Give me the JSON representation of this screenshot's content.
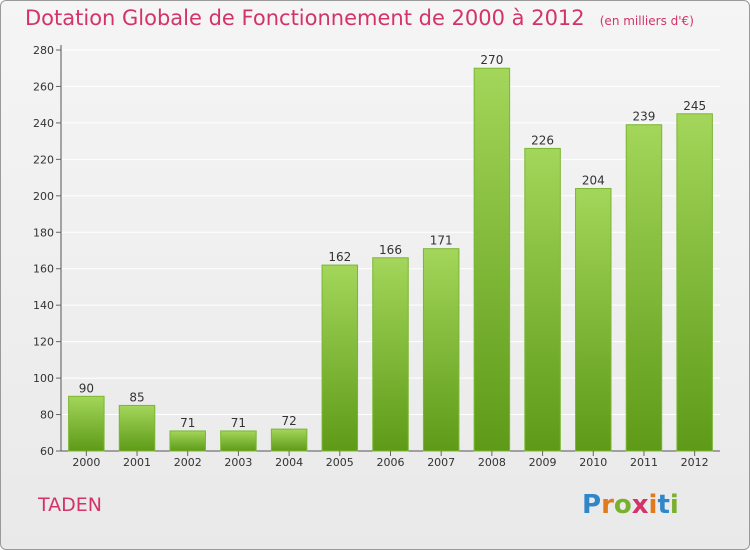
{
  "title": "Dotation Globale de Fonctionnement de 2000 à 2012",
  "subtitle": "(en milliers d'€)",
  "commune": "TADEN",
  "brand": "Proxiti",
  "colors": {
    "title": "#d4336a",
    "bar_light": "#a3d65a",
    "bar_dark": "#5e9a18",
    "grid": "#ffffff"
  },
  "chart_data": {
    "type": "bar",
    "categories": [
      "2000",
      "2001",
      "2002",
      "2003",
      "2004",
      "2005",
      "2006",
      "2007",
      "2008",
      "2009",
      "2010",
      "2011",
      "2012"
    ],
    "values": [
      90,
      85,
      71,
      71,
      72,
      162,
      166,
      171,
      270,
      226,
      204,
      239,
      245
    ],
    "ylim": [
      60,
      280
    ],
    "yticks": [
      60,
      80,
      100,
      120,
      140,
      160,
      180,
      200,
      220,
      240,
      260,
      280
    ],
    "grid": true,
    "title": "Dotation Globale de Fonctionnement de 2000 à 2012",
    "subtitle": "(en milliers d'€)",
    "xlabel": "",
    "ylabel": ""
  }
}
